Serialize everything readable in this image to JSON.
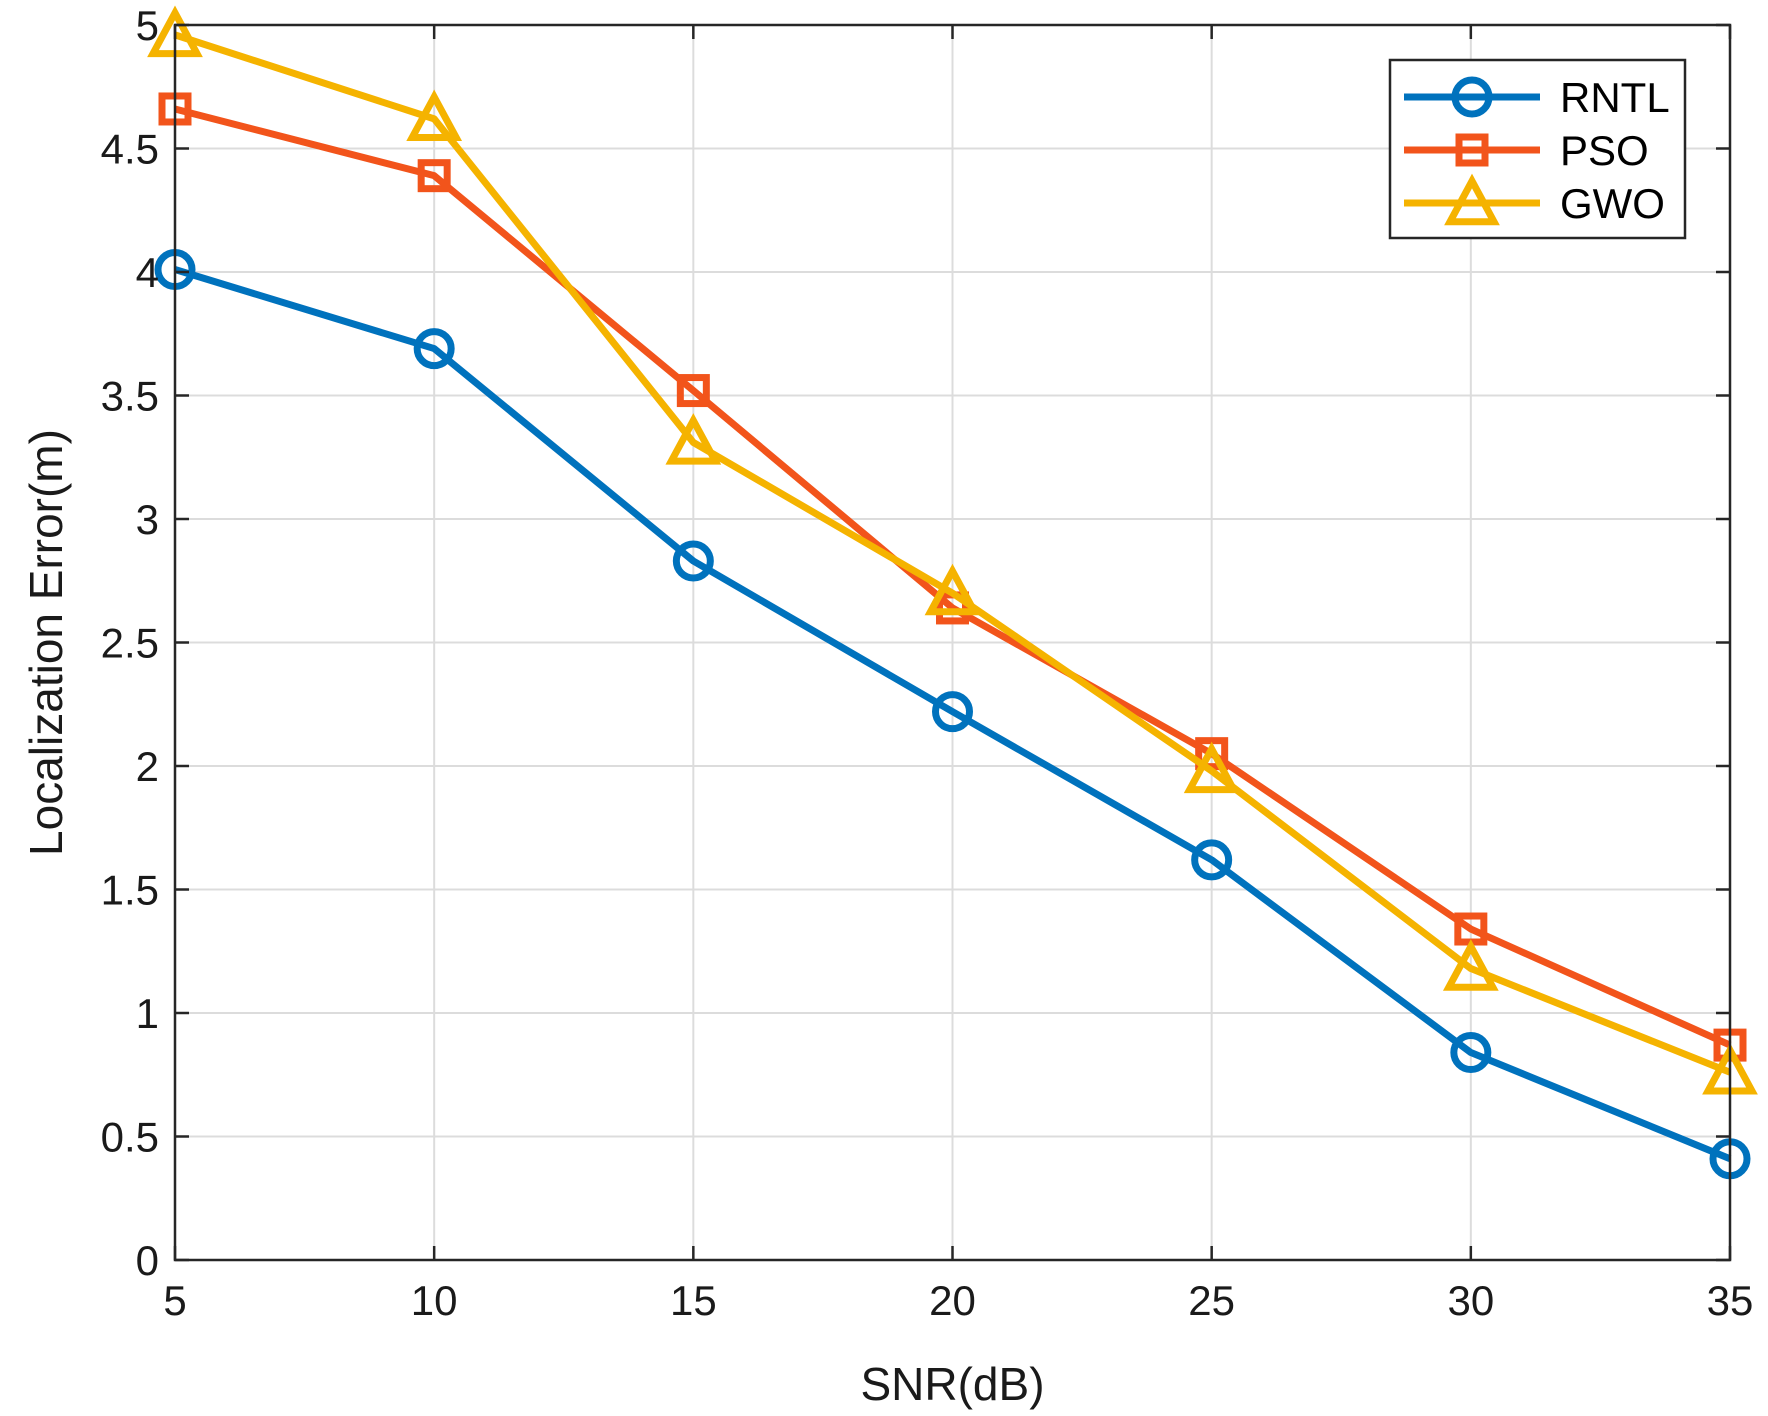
{
  "chart_data": {
    "type": "line",
    "title": "",
    "xlabel": "SNR(dB)",
    "ylabel": "Localization Error(m)",
    "x": [
      5,
      10,
      15,
      20,
      25,
      30,
      35
    ],
    "xlim": [
      5,
      35
    ],
    "ylim": [
      0,
      5
    ],
    "xticks": [
      5,
      10,
      15,
      20,
      25,
      30,
      35
    ],
    "yticks": [
      0,
      0.5,
      1,
      1.5,
      2,
      2.5,
      3,
      3.5,
      4,
      4.5,
      5
    ],
    "grid": true,
    "legend_position": "top-right",
    "series": [
      {
        "name": "RNTL",
        "color": "#0072BD",
        "marker": "circle",
        "values": [
          4.01,
          3.69,
          2.83,
          2.22,
          1.62,
          0.84,
          0.41
        ]
      },
      {
        "name": "PSO",
        "color": "#F2541B",
        "marker": "square",
        "values": [
          4.66,
          4.39,
          3.52,
          2.64,
          2.05,
          1.34,
          0.87
        ]
      },
      {
        "name": "GWO",
        "color": "#F5B300",
        "marker": "triangle",
        "values": [
          4.96,
          4.62,
          3.31,
          2.7,
          1.98,
          1.18,
          0.76
        ]
      }
    ]
  }
}
